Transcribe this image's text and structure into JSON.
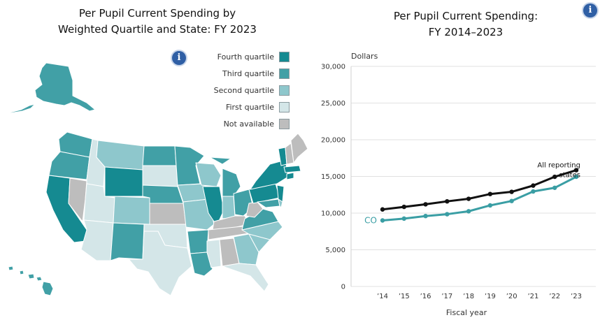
{
  "colors": {
    "fourth_quartile": "#158a91",
    "third_quartile": "#41a0a6",
    "second_quartile": "#8ec7cc",
    "first_quartile": "#d4e6e8",
    "not_available": "#bdbdbd",
    "all_states_line": "#111111",
    "co_line": "#3a9ea4",
    "info_icon": "#2f5fa5"
  },
  "map": {
    "title_line1": "Per Pupil Current Spending by",
    "title_line2": "Weighted Quartile and State: FY 2023",
    "info_icon": "info-icon",
    "legend": [
      {
        "label": "Fourth quartile",
        "key": "fourth_quartile"
      },
      {
        "label": "Third quartile",
        "key": "third_quartile"
      },
      {
        "label": "Second quartile",
        "key": "second_quartile"
      },
      {
        "label": "First quartile",
        "key": "first_quartile"
      },
      {
        "label": "Not available",
        "key": "not_available"
      }
    ]
  },
  "trend": {
    "title_line1": "Per Pupil Current Spending:",
    "title_line2": "FY 2014–2023",
    "info_icon": "info-icon"
  },
  "chart_data": {
    "type": "line",
    "ylabel": "Dollars",
    "xlabel": "Fiscal year",
    "categories": [
      "’14",
      "’15",
      "’16",
      "’17",
      "’18",
      "’19",
      "’20",
      "’21",
      "’22",
      "’23"
    ],
    "ylim": [
      0,
      30000
    ],
    "yticks": [
      0,
      5000,
      10000,
      15000,
      20000,
      25000,
      30000
    ],
    "ytick_labels": [
      "0",
      "5,000",
      "10,000",
      "15,000",
      "20,000",
      "25,000",
      "30,000"
    ],
    "grid": "horizontal",
    "series": [
      {
        "name": "All reporting states",
        "label_line1": "All reporting",
        "label_line2": "states",
        "color_key": "all_states_line",
        "values": [
          10500,
          10850,
          11200,
          11600,
          11950,
          12600,
          12900,
          13750,
          14950,
          15850
        ]
      },
      {
        "name": "CO",
        "label_line1": "CO",
        "color_key": "co_line",
        "values": [
          9000,
          9250,
          9600,
          9850,
          10250,
          11050,
          11650,
          12950,
          13450,
          14950
        ]
      }
    ]
  }
}
